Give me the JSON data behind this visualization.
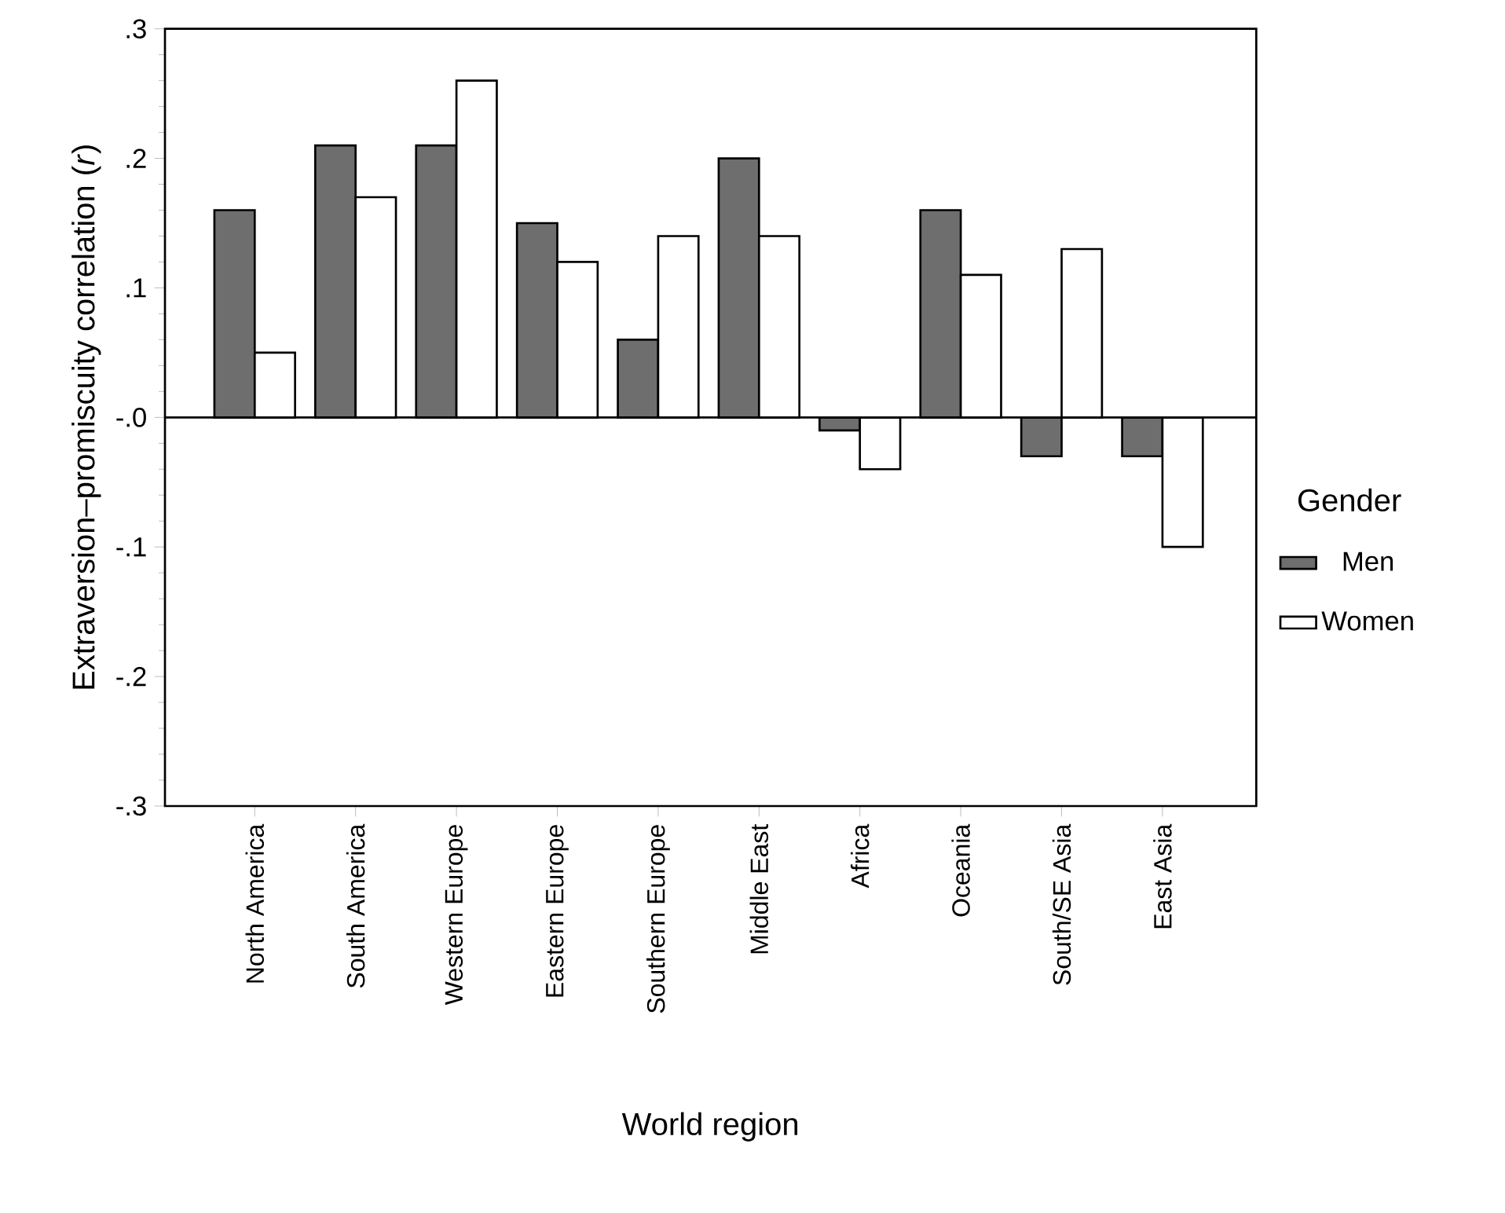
{
  "chart_data": {
    "type": "bar",
    "xlabel": "World region",
    "ylabel": "Extraversion–promiscuity correlation (*r*)",
    "legend_title": "Gender",
    "categories": [
      "North America",
      "South America",
      "Western Europe",
      "Eastern Europe",
      "Southern Europe",
      "Middle East",
      "Africa",
      "Oceania",
      "South/SE Asia",
      "East Asia"
    ],
    "series": [
      {
        "name": "Men",
        "color": "#6e6e6e",
        "values": [
          0.16,
          0.21,
          0.21,
          0.15,
          0.06,
          0.2,
          -0.01,
          0.16,
          -0.03,
          -0.03
        ]
      },
      {
        "name": "Women",
        "color": "#ffffff",
        "values": [
          0.05,
          0.17,
          0.26,
          0.12,
          0.14,
          0.14,
          -0.04,
          0.11,
          0.13,
          -0.1
        ]
      }
    ],
    "ylim": [
      -0.3,
      0.3
    ],
    "yticks": [
      {
        "value": 0.3,
        "label": ".3"
      },
      {
        "value": 0.2,
        "label": ".2"
      },
      {
        "value": 0.1,
        "label": ".1"
      },
      {
        "value": 0,
        "label": "-.0"
      },
      {
        "value": -0.1,
        "label": "-.1"
      },
      {
        "value": -0.2,
        "label": "-.2"
      },
      {
        "value": -0.3,
        "label": "-.3"
      }
    ],
    "ref_lines": [
      {
        "axis": "y",
        "value": 0
      }
    ],
    "legend": "right",
    "grid": false
  }
}
